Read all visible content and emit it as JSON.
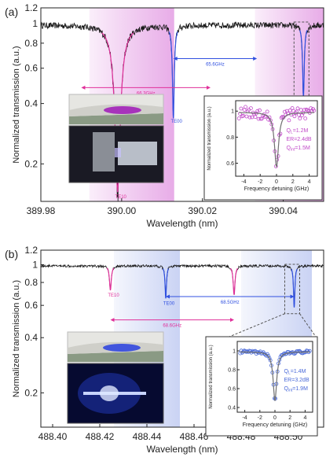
{
  "chart_data": [
    {
      "panel_label": "(a)",
      "type": "line",
      "xlabel": "Wavelength (nm)",
      "ylabel": "Normalized transmission (a.u.)",
      "xlim": [
        389.98,
        390.05
      ],
      "ylim": [
        0.13,
        1.2
      ],
      "yscale": "log",
      "xticks": [
        "389.98",
        "390.00",
        "390.02",
        "390.04"
      ],
      "xtick_values": [
        389.98,
        390.0,
        390.02,
        390.04
      ],
      "yticks": [
        "0.2",
        "0.4",
        "0.6",
        "0.8",
        "1",
        "1.2"
      ],
      "ytick_values": [
        0.2,
        0.4,
        0.6,
        0.8,
        1.0,
        1.2
      ],
      "line_color": "#1a1a1a",
      "accent_color": "#e0309a",
      "blue_color": "#3050e0",
      "bands": [
        {
          "x0": 389.992,
          "x1": 390.013,
          "color": "#e090e0"
        },
        {
          "x0": 390.033,
          "x1": 390.05,
          "color": "#e090e0"
        }
      ],
      "dips": [
        {
          "label": "TE10",
          "x": 389.999,
          "depth": 0.84,
          "width": 0.0013,
          "color": "#e0309a"
        },
        {
          "label": "TE00",
          "x": 390.0128,
          "depth": 0.64,
          "width": 0.00035,
          "color": "#3050e0"
        },
        {
          "label": "",
          "x": 390.045,
          "depth": 0.56,
          "width": 0.0003,
          "color": "#3050e0"
        }
      ],
      "spacings": [
        {
          "label": "66.3GHz",
          "x0": 389.99,
          "x1": 390.022,
          "y": 0.48,
          "color": "#e0309a"
        },
        {
          "label": "65.6GHz",
          "x0": 390.0128,
          "x1": 390.0335,
          "y": 0.67,
          "color": "#3050e0"
        }
      ],
      "inset": {
        "type": "scatter",
        "xlabel": "Frequency detuning (GHz)",
        "ylabel": "Normalized transmission (a.u.)",
        "xlim": [
          -5,
          5
        ],
        "ylim": [
          0.5,
          1.08
        ],
        "xticks": [
          "-4",
          "-2",
          "0",
          "2",
          "4"
        ],
        "xtick_values": [
          -4,
          -2,
          0,
          2,
          4
        ],
        "yticks": [
          "0.6",
          "0.8",
          "1"
        ],
        "ytick_values": [
          0.6,
          0.8,
          1.0
        ],
        "fit_depth": 0.42,
        "fit_width": 0.3,
        "marker_color": "#c048c8",
        "fit_color": "#707070",
        "labels": [
          "Q",
          "L",
          "=1.2M",
          "ER=2.4dB",
          "Q",
          "int",
          "=1.5M"
        ]
      }
    },
    {
      "panel_label": "(b)",
      "type": "line",
      "xlabel": "Wavelength (nm)",
      "ylabel": "Normalized transmission (a.u.)",
      "xlim": [
        488.395,
        488.515
      ],
      "ylim": [
        0.13,
        1.2
      ],
      "yscale": "log",
      "xticks": [
        "488.40",
        "488.42",
        "488.44",
        "488.46",
        "488.48",
        "488.50"
      ],
      "xtick_values": [
        488.4,
        488.42,
        488.44,
        488.46,
        488.48,
        488.5
      ],
      "yticks": [
        "0.2",
        "0.4",
        "0.6",
        "0.8",
        "1",
        "1.2"
      ],
      "ytick_values": [
        0.2,
        0.4,
        0.6,
        0.8,
        1.0,
        1.2
      ],
      "line_color": "#1a1a1a",
      "accent_color": "#e0309a",
      "blue_color": "#3050e0",
      "bands": [
        {
          "x0": 488.426,
          "x1": 488.454,
          "color": "#b8c4f0"
        },
        {
          "x0": 488.48,
          "x1": 488.51,
          "color": "#b8c4f0"
        }
      ],
      "dips": [
        {
          "label": "TE10",
          "x": 488.4245,
          "depth": 0.26,
          "width": 0.0005,
          "color": "#e0309a"
        },
        {
          "label": "TE00",
          "x": 488.448,
          "depth": 0.33,
          "width": 0.0004,
          "color": "#3050e0"
        },
        {
          "label": "",
          "x": 488.477,
          "depth": 0.3,
          "width": 0.0005,
          "color": "#e0309a"
        },
        {
          "label": "",
          "x": 488.5025,
          "depth": 0.4,
          "width": 0.0004,
          "color": "#3050e0"
        }
      ],
      "spacings": [
        {
          "label": "68.6GHz",
          "x0": 488.4245,
          "x1": 488.477,
          "y": 0.5,
          "color": "#e0309a"
        },
        {
          "label": "68.5GHz",
          "x0": 488.448,
          "x1": 488.5025,
          "y": 0.67,
          "color": "#3050e0"
        }
      ],
      "inset": {
        "type": "scatter",
        "xlabel": "Frequency detuning (GHz)",
        "ylabel": "Normalized transmission (a.u.)",
        "xlim": [
          -5,
          5
        ],
        "ylim": [
          0.35,
          1.1
        ],
        "xticks": [
          "-4",
          "-2",
          "0",
          "2",
          "4"
        ],
        "xtick_values": [
          -4,
          -2,
          0,
          2,
          4
        ],
        "yticks": [
          "0.4",
          "0.6",
          "0.8",
          "1"
        ],
        "ytick_values": [
          0.4,
          0.6,
          0.8,
          1.0
        ],
        "fit_depth": 0.52,
        "fit_width": 0.28,
        "marker_color": "#4868d8",
        "fit_color": "#707070",
        "labels": [
          "Q",
          "L",
          "=1.4M",
          "ER=3.2dB",
          "Q",
          "int",
          "=1.9M"
        ]
      }
    }
  ]
}
